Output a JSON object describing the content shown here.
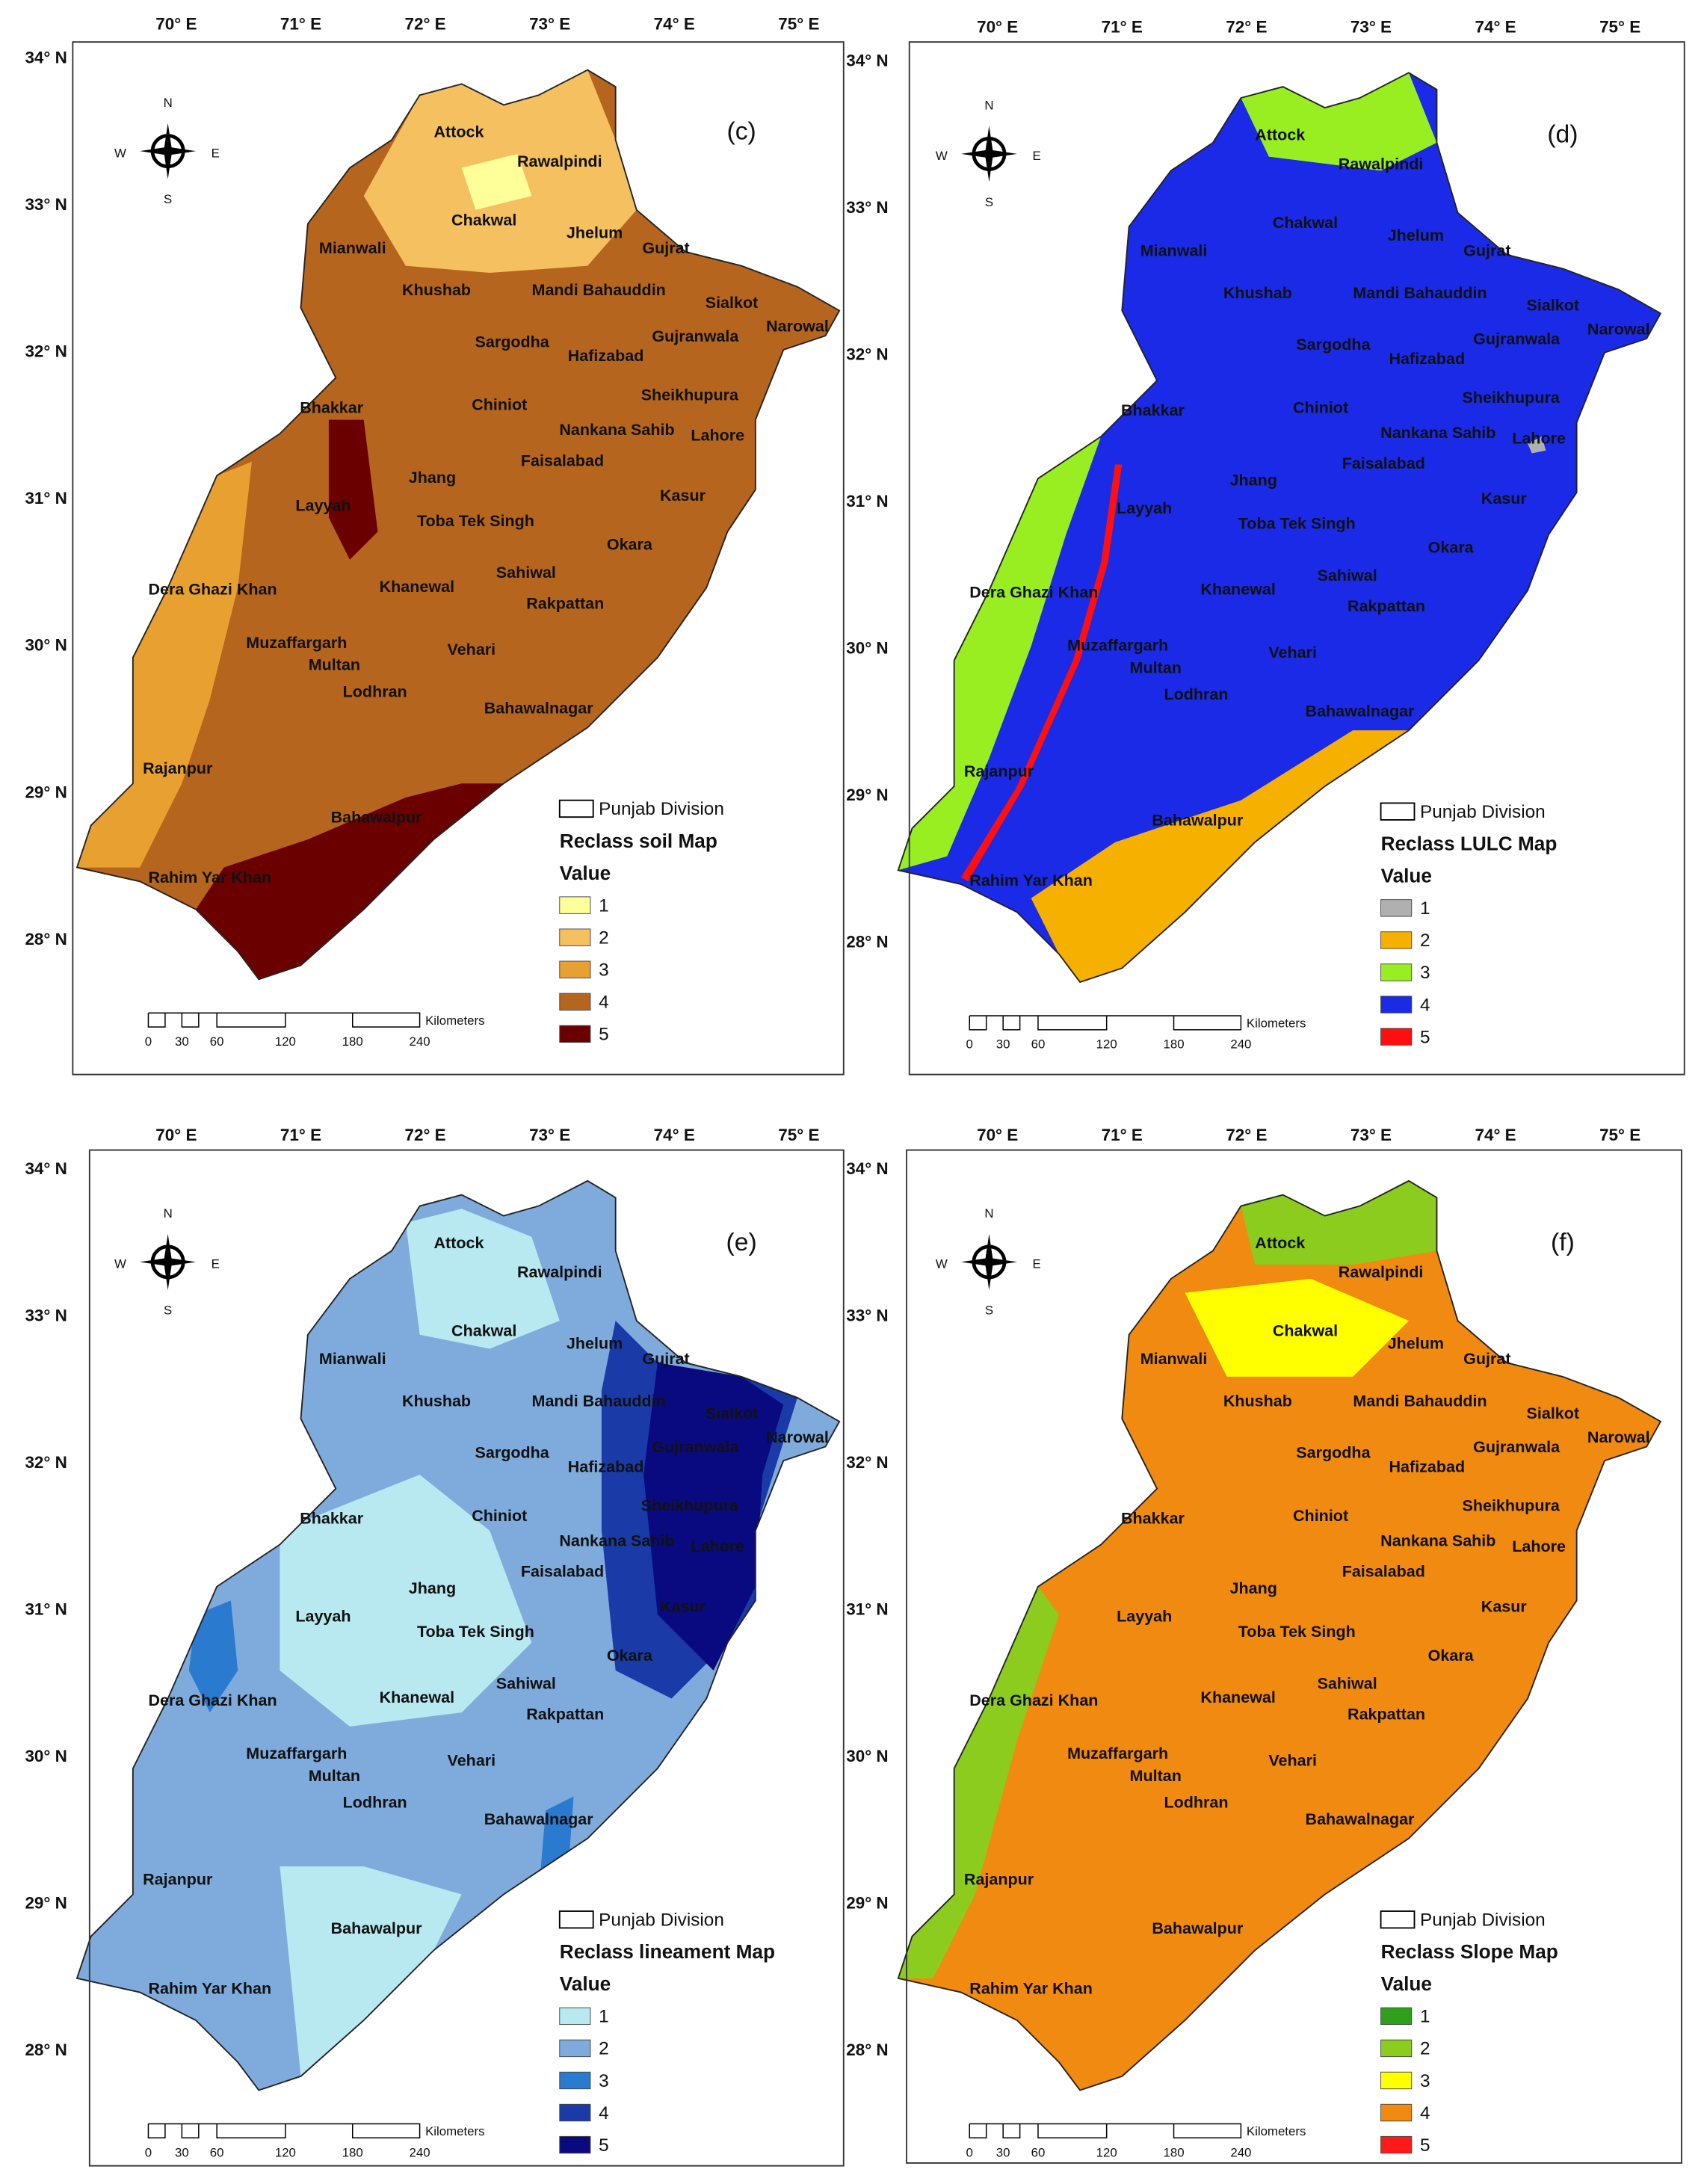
{
  "lon_ticks": [
    "70° E",
    "71° E",
    "72° E",
    "73° E",
    "74° E",
    "75° E"
  ],
  "lat_ticks": [
    "34° N",
    "33° N",
    "32° N",
    "31° N",
    "30° N",
    "29° N",
    "28° N"
  ],
  "compass": {
    "north": "N",
    "south": "S",
    "west": "W",
    "east": "E"
  },
  "districts": [
    "Attock",
    "Rawalpindi",
    "Chakwal",
    "Jhelum",
    "Gujrat",
    "Mianwali",
    "Khushab",
    "Mandi Bahauddin",
    "Sialkot",
    "Narowal",
    "Sargodha",
    "Gujranwala",
    "Hafizabad",
    "Bhakkar",
    "Chiniot",
    "Sheikhupura",
    "Nankana Sahib",
    "Lahore",
    "Faisalabad",
    "Jhang",
    "Layyah",
    "Kasur",
    "Toba Tek Singh",
    "Okara",
    "Sahiwal",
    "Khanewal",
    "Dera Ghazi Khan",
    "Rakpattan",
    "Muzaffargarh",
    "Multan",
    "Vehari",
    "Lodhran",
    "Bahawalnagar",
    "Rajanpur",
    "Bahawalpur",
    "Rahim Yar Khan"
  ],
  "boundary_legend": "Punjab Division",
  "legend_value_title": "Value",
  "scale_bar": {
    "unit": "Kilometers",
    "ticks": [
      "0",
      "30",
      "60",
      "120",
      "180",
      "240"
    ]
  },
  "panels": [
    {
      "label": "(c)",
      "legend_title": "Reclass soil Map",
      "classes": [
        {
          "label": "1",
          "color": "#ffff99"
        },
        {
          "label": "2",
          "color": "#f5c060"
        },
        {
          "label": "3",
          "color": "#e8a030"
        },
        {
          "label": "4",
          "color": "#b5651d"
        },
        {
          "label": "5",
          "color": "#6b0000"
        }
      ]
    },
    {
      "label": "(d)",
      "legend_title": "Reclass LULC Map",
      "classes": [
        {
          "label": "1",
          "color": "#b0b0b0"
        },
        {
          "label": "2",
          "color": "#f5b000"
        },
        {
          "label": "3",
          "color": "#99ee22"
        },
        {
          "label": "4",
          "color": "#1a2ae6"
        },
        {
          "label": "5",
          "color": "#ff1010"
        }
      ]
    },
    {
      "label": "(e)",
      "legend_title": "Reclass lineament Map",
      "classes": [
        {
          "label": "1",
          "color": "#b8e8f0"
        },
        {
          "label": "2",
          "color": "#7fabdc"
        },
        {
          "label": "3",
          "color": "#2a7ad0"
        },
        {
          "label": "4",
          "color": "#1a3aa8"
        },
        {
          "label": "5",
          "color": "#0a0a80"
        }
      ]
    },
    {
      "label": "(f)",
      "legend_title": "Reclass Slope Map",
      "classes": [
        {
          "label": "1",
          "color": "#2ea01a"
        },
        {
          "label": "2",
          "color": "#8ccc1e"
        },
        {
          "label": "3",
          "color": "#ffff00"
        },
        {
          "label": "4",
          "color": "#f08a10"
        },
        {
          "label": "5",
          "color": "#ff1a1a"
        }
      ]
    }
  ]
}
